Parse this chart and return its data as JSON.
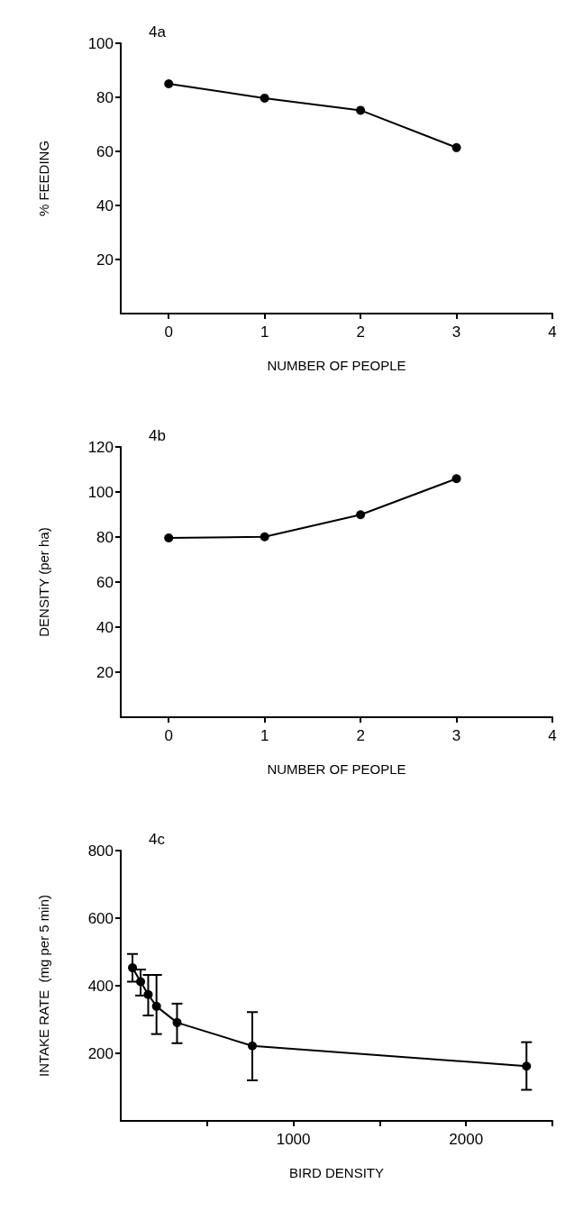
{
  "chart_data": [
    {
      "type": "line",
      "title": "4a",
      "xlabel": "NUMBER OF PEOPLE",
      "ylabel": "% FEEDING",
      "marker": "circle",
      "line_style": "solid",
      "x": [
        0,
        1,
        2,
        3
      ],
      "series": [
        {
          "color": "#000000",
          "values": [
            85,
            79.7,
            75.2,
            61.4
          ]
        }
      ],
      "xlim": [
        -0.5,
        4
      ],
      "xticks": [
        0,
        1,
        2,
        3,
        4
      ],
      "ylim": [
        0,
        100
      ],
      "yticks": [
        20,
        40,
        60,
        80,
        100
      ]
    },
    {
      "type": "line",
      "title": "4b",
      "xlabel": "NUMBER OF PEOPLE",
      "ylabel": "DENSITY (per ha)",
      "marker": "circle",
      "line_style": "solid",
      "x": [
        0,
        1,
        2,
        3
      ],
      "series": [
        {
          "color": "#000000",
          "values": [
            79.6,
            80.1,
            89.9,
            105.9
          ]
        }
      ],
      "xlim": [
        -0.5,
        4
      ],
      "xticks": [
        0,
        1,
        2,
        3,
        4
      ],
      "ylim": [
        0,
        120
      ],
      "yticks": [
        20,
        40,
        60,
        80,
        100,
        120
      ]
    },
    {
      "type": "line",
      "title": "4c",
      "xlabel": "BIRD DENSITY",
      "ylabel": "INTAKE RATE  (mg per 5 min)",
      "marker": "circle",
      "line_style": "solid",
      "x": [
        68,
        115,
        159,
        207,
        326,
        762,
        2350
      ],
      "series": [
        {
          "color": "#000000",
          "values": [
            453,
            412,
            374,
            339,
            291,
            222,
            162
          ],
          "errors": [
            [
              412,
              494
            ],
            [
              371,
              448
            ],
            [
              312,
              432
            ],
            [
              257,
              432
            ],
            [
              230,
              347
            ],
            [
              120,
              322
            ],
            [
              92,
              233
            ]
          ]
        }
      ],
      "xlim": [
        0,
        2500
      ],
      "xticks": [
        {
          "value": 500,
          "label": null
        },
        1000,
        {
          "value": 1500,
          "label": null
        },
        2000,
        {
          "value": 2500,
          "label": null
        }
      ],
      "ylim": [
        0,
        800
      ],
      "yticks": [
        200,
        400,
        600,
        800
      ]
    }
  ]
}
